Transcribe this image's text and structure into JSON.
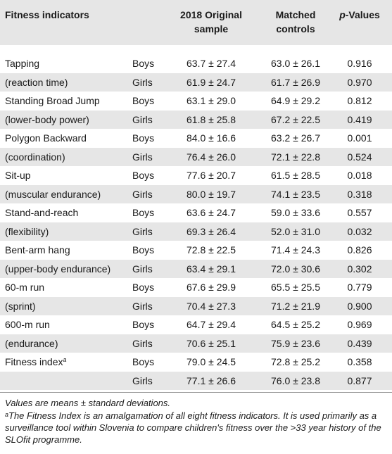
{
  "headers": {
    "indicator": "Fitness indicators",
    "original_line1": "2018 Original",
    "original_line2": "sample",
    "matched_line1": "Matched",
    "matched_line2": "controls",
    "p_italic": "p",
    "p_suffix": "-Values"
  },
  "rows": [
    {
      "indicator": "Tapping",
      "sex": "Boys",
      "original": "63.7 ± 27.4",
      "matched": "63.0 ± 26.1",
      "p": "0.916"
    },
    {
      "indicator": "(reaction time)",
      "sex": "Girls",
      "original": "61.9 ± 24.7",
      "matched": "61.7 ± 26.9",
      "p": "0.970"
    },
    {
      "indicator": "Standing Broad Jump",
      "sex": "Boys",
      "original": "63.1 ± 29.0",
      "matched": "64.9 ± 29.2",
      "p": "0.812"
    },
    {
      "indicator": "(lower-body power)",
      "sex": "Girls",
      "original": "61.8 ± 25.8",
      "matched": "67.2 ± 22.5",
      "p": "0.419"
    },
    {
      "indicator": "Polygon Backward",
      "sex": "Boys",
      "original": "84.0 ± 16.6",
      "matched": "63.2 ± 26.7",
      "p": "0.001"
    },
    {
      "indicator": "(coordination)",
      "sex": "Girls",
      "original": "76.4 ± 26.0",
      "matched": "72.1 ± 22.8",
      "p": "0.524"
    },
    {
      "indicator": "Sit-up",
      "sex": "Boys",
      "original": "77.6 ± 20.7",
      "matched": "61.5 ± 28.5",
      "p": "0.018"
    },
    {
      "indicator": "(muscular endurance)",
      "sex": "Girls",
      "original": "80.0 ± 19.7",
      "matched": "74.1 ± 23.5",
      "p": "0.318"
    },
    {
      "indicator": "Stand-and-reach",
      "sex": "Boys",
      "original": "63.6 ± 24.7",
      "matched": "59.0 ± 33.6",
      "p": "0.557"
    },
    {
      "indicator": "(flexibility)",
      "sex": "Girls",
      "original": "69.3 ± 26.4",
      "matched": "52.0 ± 31.0",
      "p": "0.032"
    },
    {
      "indicator": "Bent-arm hang",
      "sex": "Boys",
      "original": "72.8 ± 22.5",
      "matched": "71.4 ± 24.3",
      "p": "0.826"
    },
    {
      "indicator": "(upper-body endurance)",
      "sex": "Girls",
      "original": "63.4 ± 29.1",
      "matched": "72.0 ± 30.6",
      "p": "0.302"
    },
    {
      "indicator": "60-m run",
      "sex": "Boys",
      "original": "67.6 ± 29.9",
      "matched": "65.5 ± 25.5",
      "p": "0.779"
    },
    {
      "indicator": "(sprint)",
      "sex": "Girls",
      "original": "70.4 ± 27.3",
      "matched": "71.2 ± 21.9",
      "p": "0.900"
    },
    {
      "indicator": "600-m run",
      "sex": "Boys",
      "original": "64.7 ± 29.4",
      "matched": "64.5 ± 25.2",
      "p": "0.969"
    },
    {
      "indicator": "(endurance)",
      "sex": "Girls",
      "original": "70.6 ± 25.1",
      "matched": "75.9 ± 23.6",
      "p": "0.439"
    },
    {
      "indicator": "Fitness index",
      "sup": "a",
      "sex": "Boys",
      "original": "79.0 ± 24.5",
      "matched": "72.8 ± 25.2",
      "p": "0.358"
    },
    {
      "indicator": "",
      "sex": "Girls",
      "original": "77.1 ± 26.6",
      "matched": "76.0 ± 23.8",
      "p": "0.877"
    }
  ],
  "footnotes": {
    "values_note": "Values are means ± standard deviations.",
    "a_marker": "a",
    "a_text": "The Fitness Index is an amalgamation of all eight fitness indicators. It is used primarily as a surveillance tool within Slovenia to compare children's fitness over the >33 year history of the SLOfit programme."
  }
}
